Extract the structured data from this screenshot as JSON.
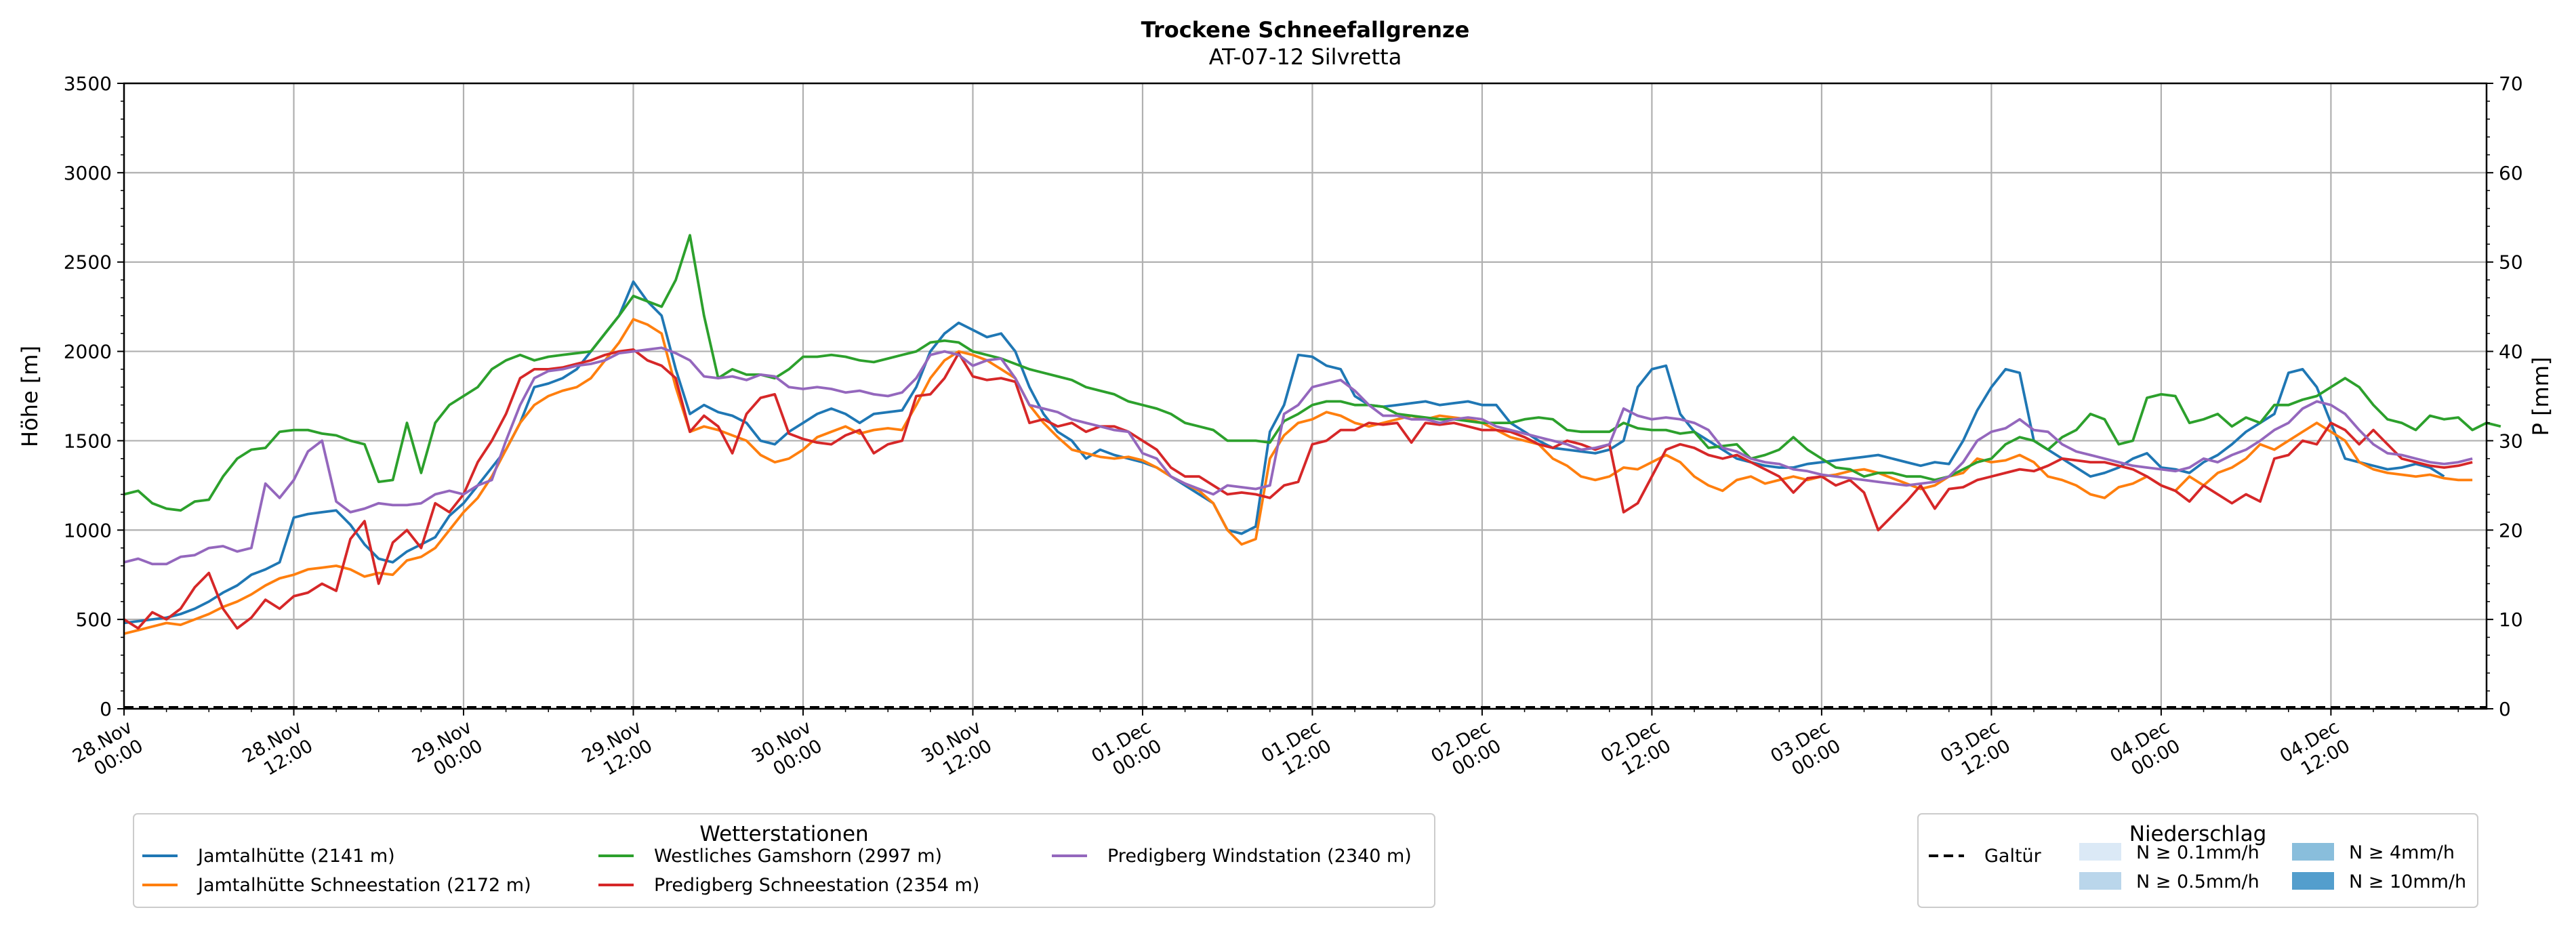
{
  "chart_data": {
    "type": "line",
    "title": "Trockene Schneefallgrenze",
    "subtitle": "AT-07-12 Silvretta",
    "ylabel": "Höhe [m]",
    "y2label": "P [mm]",
    "ylim": [
      0,
      3500
    ],
    "y2lim": [
      0,
      70
    ],
    "yticks": [
      0,
      500,
      1000,
      1500,
      2000,
      2500,
      3000,
      3500
    ],
    "y2ticks": [
      0,
      10,
      20,
      30,
      40,
      50,
      60,
      70
    ],
    "grid": true,
    "x_start": "28.Nov 00:00",
    "x_step_hours": 1,
    "x_range_hours": [
      0,
      167
    ],
    "xticks": [
      {
        "h": 0,
        "l1": "28.Nov",
        "l2": "00:00"
      },
      {
        "h": 12,
        "l1": "28.Nov",
        "l2": "12:00"
      },
      {
        "h": 24,
        "l1": "29.Nov",
        "l2": "00:00"
      },
      {
        "h": 36,
        "l1": "29.Nov",
        "l2": "12:00"
      },
      {
        "h": 48,
        "l1": "30.Nov",
        "l2": "00:00"
      },
      {
        "h": 60,
        "l1": "30.Nov",
        "l2": "12:00"
      },
      {
        "h": 72,
        "l1": "01.Dec",
        "l2": "00:00"
      },
      {
        "h": 84,
        "l1": "01.Dec",
        "l2": "12:00"
      },
      {
        "h": 96,
        "l1": "02.Dec",
        "l2": "00:00"
      },
      {
        "h": 108,
        "l1": "02.Dec",
        "l2": "12:00"
      },
      {
        "h": 120,
        "l1": "03.Dec",
        "l2": "00:00"
      },
      {
        "h": 132,
        "l1": "03.Dec",
        "l2": "12:00"
      },
      {
        "h": 144,
        "l1": "04.Dec",
        "l2": "00:00"
      },
      {
        "h": 156,
        "l1": "04.Dec",
        "l2": "12:00"
      }
    ],
    "series": [
      {
        "name": "Jamtalhütte (2141 m)",
        "color": "#1f77b4",
        "values": [
          480,
          490,
          500,
          510,
          530,
          560,
          600,
          650,
          690,
          750,
          780,
          820,
          1070,
          1090,
          1100,
          1110,
          1030,
          920,
          840,
          820,
          880,
          920,
          960,
          1080,
          1150,
          1250,
          1350,
          1450,
          1600,
          1800,
          1820,
          1850,
          1900,
          2000,
          2100,
          2200,
          2390,
          2280,
          2200,
          1900,
          1650,
          1700,
          1660,
          1640,
          1600,
          1500,
          1480,
          1550,
          1600,
          1650,
          1680,
          1650,
          1600,
          1650,
          1660,
          1670,
          1800,
          2000,
          2100,
          2160,
          2120,
          2080,
          2100,
          2000,
          1800,
          1650,
          1550,
          1500,
          1400,
          1450,
          1420,
          1400,
          1380,
          1350,
          1300,
          1250,
          1200,
          1150,
          1000,
          980,
          1020,
          1550,
          1700,
          1980,
          1970,
          1920,
          1900,
          1750,
          1700,
          1690,
          1700,
          1710,
          1720,
          1700,
          1710,
          1720,
          1700,
          1700,
          1600,
          1550,
          1500,
          1460,
          1450,
          1440,
          1430,
          1450,
          1500,
          1800,
          1900,
          1920,
          1650,
          1550,
          1500,
          1450,
          1400,
          1380,
          1360,
          1350,
          1350,
          1370,
          1380,
          1390,
          1400,
          1410,
          1420,
          1400,
          1380,
          1360,
          1380,
          1370,
          1500,
          1670,
          1800,
          1900,
          1880,
          1500,
          1450,
          1400,
          1350,
          1300,
          1320,
          1350,
          1400,
          1430,
          1350,
          1340,
          1320,
          1380,
          1420,
          1480,
          1550,
          1600,
          1650,
          1880,
          1900,
          1800,
          1600,
          1400,
          1380,
          1360,
          1340,
          1350,
          1370,
          1350,
          1300
        ]
      },
      {
        "name": "Jamtalhütte Schneestation (2172 m)",
        "color": "#ff7f0e",
        "values": [
          420,
          440,
          460,
          480,
          470,
          500,
          530,
          570,
          600,
          640,
          690,
          730,
          750,
          780,
          790,
          800,
          780,
          740,
          760,
          750,
          830,
          850,
          900,
          1000,
          1100,
          1180,
          1300,
          1450,
          1600,
          1700,
          1750,
          1780,
          1800,
          1850,
          1950,
          2050,
          2180,
          2150,
          2100,
          1800,
          1550,
          1580,
          1560,
          1530,
          1500,
          1420,
          1380,
          1400,
          1450,
          1520,
          1550,
          1580,
          1540,
          1560,
          1570,
          1560,
          1700,
          1850,
          1950,
          2000,
          1980,
          1950,
          1900,
          1850,
          1700,
          1600,
          1520,
          1450,
          1430,
          1410,
          1400,
          1410,
          1390,
          1350,
          1300,
          1260,
          1220,
          1150,
          1000,
          920,
          950,
          1400,
          1530,
          1600,
          1620,
          1660,
          1640,
          1600,
          1580,
          1600,
          1620,
          1640,
          1620,
          1640,
          1630,
          1620,
          1600,
          1560,
          1520,
          1500,
          1480,
          1400,
          1360,
          1300,
          1280,
          1300,
          1350,
          1340,
          1380,
          1420,
          1380,
          1300,
          1250,
          1220,
          1280,
          1300,
          1260,
          1280,
          1300,
          1280,
          1300,
          1310,
          1330,
          1340,
          1320,
          1290,
          1260,
          1230,
          1250,
          1300,
          1320,
          1400,
          1380,
          1390,
          1420,
          1380,
          1300,
          1280,
          1250,
          1200,
          1180,
          1240,
          1260,
          1300,
          1250,
          1220,
          1300,
          1250,
          1320,
          1350,
          1400,
          1480,
          1450,
          1500,
          1550,
          1600,
          1550,
          1500,
          1380,
          1340,
          1320,
          1310,
          1300,
          1310,
          1290,
          1280,
          1280
        ]
      },
      {
        "name": "Westliches Gamshorn (2997 m)",
        "color": "#2ca02c",
        "values": [
          1200,
          1220,
          1150,
          1120,
          1110,
          1160,
          1170,
          1300,
          1400,
          1450,
          1460,
          1550,
          1560,
          1560,
          1540,
          1530,
          1500,
          1480,
          1270,
          1280,
          1600,
          1320,
          1600,
          1700,
          1750,
          1800,
          1900,
          1950,
          1980,
          1950,
          1970,
          1980,
          1990,
          2000,
          2100,
          2200,
          2310,
          2280,
          2250,
          2400,
          2650,
          2200,
          1850,
          1900,
          1870,
          1870,
          1850,
          1900,
          1970,
          1970,
          1980,
          1970,
          1950,
          1940,
          1960,
          1980,
          2000,
          2050,
          2060,
          2050,
          2000,
          1980,
          1960,
          1930,
          1900,
          1880,
          1860,
          1840,
          1800,
          1780,
          1760,
          1720,
          1700,
          1680,
          1650,
          1600,
          1580,
          1560,
          1500,
          1500,
          1500,
          1490,
          1610,
          1650,
          1700,
          1720,
          1720,
          1700,
          1700,
          1690,
          1650,
          1640,
          1630,
          1620,
          1620,
          1610,
          1600,
          1600,
          1600,
          1620,
          1630,
          1620,
          1560,
          1550,
          1550,
          1550,
          1600,
          1570,
          1560,
          1560,
          1540,
          1550,
          1460,
          1470,
          1480,
          1400,
          1420,
          1450,
          1520,
          1450,
          1400,
          1350,
          1340,
          1300,
          1320,
          1320,
          1300,
          1300,
          1280,
          1300,
          1340,
          1380,
          1400,
          1480,
          1520,
          1500,
          1450,
          1520,
          1560,
          1650,
          1620,
          1480,
          1500,
          1740,
          1760,
          1750,
          1600,
          1620,
          1650,
          1580,
          1630,
          1600,
          1700,
          1700,
          1730,
          1750,
          1800,
          1850,
          1800,
          1700,
          1620,
          1600,
          1560,
          1640,
          1620,
          1630,
          1560,
          1600,
          1580
        ]
      },
      {
        "name": "Predigberg Schneestation (2354 m)",
        "color": "#d62728",
        "values": [
          500,
          450,
          540,
          500,
          560,
          680,
          760,
          560,
          450,
          510,
          610,
          560,
          630,
          650,
          700,
          660,
          950,
          1050,
          700,
          930,
          1000,
          900,
          1150,
          1100,
          1200,
          1380,
          1500,
          1650,
          1850,
          1900,
          1900,
          1910,
          1930,
          1950,
          1980,
          2000,
          2010,
          1950,
          1920,
          1850,
          1550,
          1640,
          1580,
          1430,
          1650,
          1740,
          1760,
          1540,
          1510,
          1490,
          1480,
          1530,
          1560,
          1430,
          1480,
          1500,
          1750,
          1760,
          1850,
          1990,
          1860,
          1840,
          1850,
          1830,
          1600,
          1620,
          1580,
          1600,
          1550,
          1580,
          1580,
          1550,
          1500,
          1450,
          1350,
          1300,
          1300,
          1250,
          1200,
          1210,
          1200,
          1180,
          1250,
          1270,
          1480,
          1500,
          1560,
          1560,
          1600,
          1590,
          1600,
          1490,
          1600,
          1590,
          1600,
          1580,
          1560,
          1560,
          1550,
          1520,
          1480,
          1460,
          1500,
          1480,
          1450,
          1480,
          1100,
          1150,
          1300,
          1450,
          1480,
          1460,
          1420,
          1400,
          1420,
          1380,
          1340,
          1300,
          1210,
          1290,
          1300,
          1250,
          1280,
          1210,
          1000,
          1080,
          1160,
          1250,
          1120,
          1230,
          1240,
          1280,
          1300,
          1320,
          1340,
          1330,
          1360,
          1400,
          1390,
          1380,
          1380,
          1360,
          1340,
          1300,
          1250,
          1220,
          1160,
          1250,
          1200,
          1150,
          1200,
          1160,
          1400,
          1420,
          1500,
          1480,
          1600,
          1560,
          1480,
          1560,
          1480,
          1400,
          1380,
          1360,
          1350,
          1360,
          1380
        ]
      },
      {
        "name": "Predigberg Windstation (2340 m)",
        "color": "#9467bd",
        "values": [
          820,
          840,
          810,
          810,
          850,
          860,
          900,
          910,
          880,
          900,
          1260,
          1180,
          1280,
          1440,
          1500,
          1160,
          1100,
          1120,
          1150,
          1140,
          1140,
          1150,
          1200,
          1220,
          1200,
          1250,
          1280,
          1500,
          1700,
          1850,
          1890,
          1900,
          1920,
          1930,
          1950,
          1990,
          2000,
          2010,
          2020,
          1990,
          1950,
          1860,
          1850,
          1860,
          1840,
          1870,
          1860,
          1800,
          1790,
          1800,
          1790,
          1770,
          1780,
          1760,
          1750,
          1770,
          1850,
          1980,
          2000,
          1980,
          1920,
          1950,
          1960,
          1850,
          1700,
          1680,
          1660,
          1620,
          1600,
          1580,
          1560,
          1550,
          1430,
          1400,
          1300,
          1260,
          1230,
          1200,
          1250,
          1240,
          1230,
          1250,
          1650,
          1700,
          1800,
          1820,
          1840,
          1780,
          1700,
          1640,
          1640,
          1620,
          1620,
          1600,
          1620,
          1630,
          1620,
          1580,
          1560,
          1540,
          1520,
          1500,
          1480,
          1450,
          1460,
          1480,
          1680,
          1640,
          1620,
          1630,
          1620,
          1600,
          1560,
          1460,
          1440,
          1400,
          1380,
          1370,
          1340,
          1330,
          1310,
          1300,
          1290,
          1280,
          1270,
          1260,
          1250,
          1260,
          1270,
          1300,
          1380,
          1500,
          1550,
          1570,
          1620,
          1560,
          1550,
          1480,
          1440,
          1420,
          1400,
          1380,
          1360,
          1350,
          1340,
          1330,
          1350,
          1400,
          1380,
          1420,
          1450,
          1500,
          1560,
          1600,
          1680,
          1720,
          1700,
          1650,
          1560,
          1480,
          1430,
          1420,
          1400,
          1380,
          1370,
          1380,
          1400
        ]
      }
    ],
    "reference_lines": [
      {
        "name": "Galtür",
        "value": 0,
        "style": "dashed",
        "color": "#000000"
      }
    ],
    "legend_left": {
      "title": "Wetterstationen",
      "placement": "bottom-left, below plot",
      "columns": [
        [
          "Jamtalhütte (2141 m)",
          "Jamtalhütte Schneestation (2172 m)"
        ],
        [
          "Westliches Gamshorn (2997 m)",
          "Predigberg Schneestation (2354 m)"
        ],
        [
          "Predigberg Windstation (2340 m)"
        ]
      ]
    },
    "legend_right": {
      "title": "Niederschlag",
      "placement": "bottom-right, below plot",
      "line_entry": "Galtür",
      "precip_classes": [
        {
          "label": "N ≥ 0.1mm/h",
          "color": "#dbe9f6"
        },
        {
          "label": "N ≥ 0.5mm/h",
          "color": "#bad6eb"
        },
        {
          "label": "N ≥ 4mm/h",
          "color": "#89bedc"
        },
        {
          "label": "N ≥ 10mm/h",
          "color": "#539ecd"
        }
      ]
    }
  }
}
